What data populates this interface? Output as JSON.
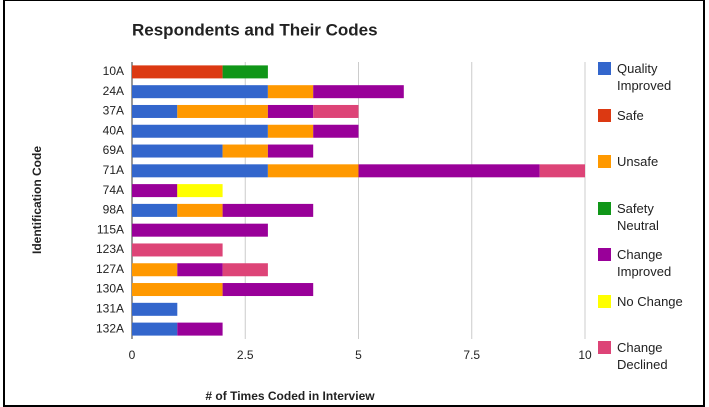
{
  "chart_data": {
    "type": "stacked-barh",
    "title": "Respondents and Their Codes",
    "xlabel": "# of Times Coded in Interview",
    "ylabel": "Identification Code",
    "categories": [
      "10A",
      "24A",
      "37A",
      "40A",
      "69A",
      "71A",
      "74A",
      "98A",
      "115A",
      "123A",
      "127A",
      "130A",
      "131A",
      "132A"
    ],
    "series": [
      {
        "name": "Quality Improved",
        "color": "#3366cc",
        "values": [
          0,
          3,
          1,
          3,
          2,
          3,
          0,
          1,
          0,
          0,
          0,
          0,
          1,
          1
        ]
      },
      {
        "name": "Safe",
        "color": "#dc3912",
        "values": [
          2,
          0,
          0,
          0,
          0,
          0,
          0,
          0,
          0,
          0,
          0,
          0,
          0,
          0
        ]
      },
      {
        "name": "Unsafe",
        "color": "#ff9900",
        "values": [
          0,
          1,
          2,
          1,
          1,
          2,
          0,
          1,
          0,
          0,
          1,
          2,
          0,
          0
        ]
      },
      {
        "name": "Safety Neutral",
        "color": "#109618",
        "values": [
          1,
          0,
          0,
          0,
          0,
          0,
          0,
          0,
          0,
          0,
          0,
          0,
          0,
          0
        ]
      },
      {
        "name": "Change Improved",
        "color": "#990099",
        "values": [
          0,
          2,
          1,
          1,
          1,
          4,
          1,
          2,
          3,
          0,
          1,
          2,
          0,
          1
        ]
      },
      {
        "name": "No Change",
        "color": "#ffff00",
        "values": [
          0,
          0,
          0,
          0,
          0,
          0,
          1,
          0,
          0,
          0,
          0,
          0,
          0,
          0
        ]
      },
      {
        "name": "Change Declined",
        "color": "#dd4477",
        "values": [
          0,
          0,
          1,
          0,
          0,
          1,
          0,
          0,
          0,
          2,
          1,
          0,
          0,
          0
        ]
      }
    ],
    "xlim": [
      0,
      10
    ],
    "xticks": [
      0,
      2.5,
      5,
      7.5,
      10
    ],
    "grid": true,
    "legend": "right"
  }
}
